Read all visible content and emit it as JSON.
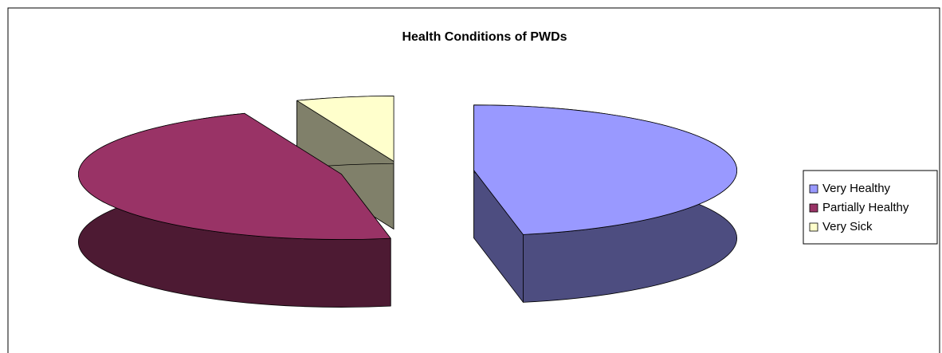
{
  "chart_data": {
    "type": "pie",
    "title": "Health Conditions of PWDs",
    "categories": [
      "Very Healthy",
      "Partially Healthy",
      "Very Sick"
    ],
    "values": [
      47,
      47,
      6
    ],
    "colors": [
      "#9999ff",
      "#993366",
      "#ffffcc"
    ],
    "side_colors": [
      "#4d4d80",
      "#4d1a33",
      "#80806a"
    ],
    "legend": "right"
  }
}
